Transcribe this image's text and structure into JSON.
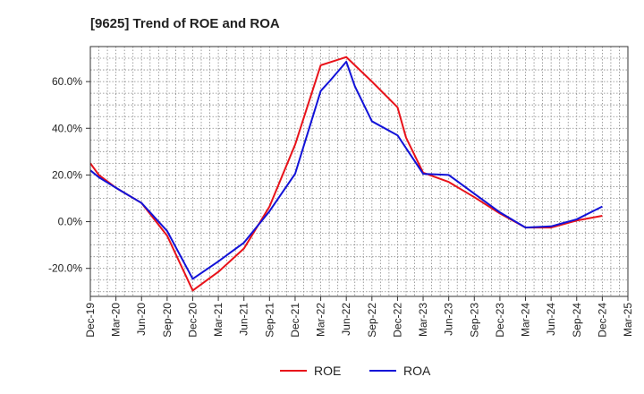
{
  "chart_data": {
    "type": "line",
    "title": "[9625]  Trend of ROE and ROA",
    "xlabel": "",
    "ylabel": "",
    "x": [
      "Dec-19",
      "Mar-20",
      "Jun-20",
      "Sep-20",
      "Dec-20",
      "Mar-21",
      "Jun-21",
      "Sep-21",
      "Dec-21",
      "Mar-22",
      "Jun-22",
      "Sep-22",
      "Dec-22",
      "Mar-23",
      "Jun-23",
      "Sep-23",
      "Dec-23",
      "Mar-24",
      "Jun-24",
      "Sep-24",
      "Dec-24",
      "Mar-25"
    ],
    "ylim": [
      -32,
      75
    ],
    "yticks": [
      -20,
      0,
      20,
      40,
      60
    ],
    "ytick_labels": [
      "-20.0%",
      "0.0%",
      "20.0%",
      "40.0%",
      "60.0%"
    ],
    "grid": true,
    "legend": "bottom-center",
    "series": [
      {
        "name": "ROE",
        "color": "#e8121a",
        "points": [
          [
            "Dec-19",
            25
          ],
          [
            "Jan-20",
            20
          ],
          [
            "Mar-20",
            14.5
          ],
          [
            "Jun-20",
            8
          ],
          [
            "Sep-20",
            -6
          ],
          [
            "Dec-20",
            -29.5
          ],
          [
            "Mar-21",
            -21.5
          ],
          [
            "Jun-21",
            -11.5
          ],
          [
            "Sep-21",
            6.5
          ],
          [
            "Dec-21",
            33
          ],
          [
            "Mar-22",
            67
          ],
          [
            "Jun-22",
            70.5
          ],
          [
            "Sep-22",
            60
          ],
          [
            "Dec-22",
            49
          ],
          [
            "Jan-23",
            36
          ],
          [
            "Mar-23",
            21
          ],
          [
            "Jun-23",
            17
          ],
          [
            "Sep-23",
            10.5
          ],
          [
            "Dec-23",
            3.5
          ],
          [
            "Mar-24",
            -2.5
          ],
          [
            "Jun-24",
            -2.5
          ],
          [
            "Sep-24",
            0.5
          ],
          [
            "Dec-24",
            2.5
          ]
        ]
      },
      {
        "name": "ROA",
        "color": "#1212d8",
        "points": [
          [
            "Dec-19",
            22
          ],
          [
            "Jan-20",
            19
          ],
          [
            "Mar-20",
            14.5
          ],
          [
            "Jun-20",
            8
          ],
          [
            "Sep-20",
            -4
          ],
          [
            "Dec-20",
            -24.5
          ],
          [
            "Mar-21",
            -17
          ],
          [
            "Jun-21",
            -9
          ],
          [
            "Sep-21",
            4.5
          ],
          [
            "Dec-21",
            20.5
          ],
          [
            "Mar-22",
            56
          ],
          [
            "Apr-22",
            60
          ],
          [
            "Jun-22",
            68.5
          ],
          [
            "Jul-22",
            58
          ],
          [
            "Sep-22",
            43
          ],
          [
            "Dec-22",
            37
          ],
          [
            "Mar-23",
            20.5
          ],
          [
            "Jun-23",
            20
          ],
          [
            "Sep-23",
            12
          ],
          [
            "Dec-23",
            4
          ],
          [
            "Mar-24",
            -2.5
          ],
          [
            "Jun-24",
            -2
          ],
          [
            "Sep-24",
            1
          ],
          [
            "Dec-24",
            6.5
          ]
        ]
      }
    ]
  }
}
